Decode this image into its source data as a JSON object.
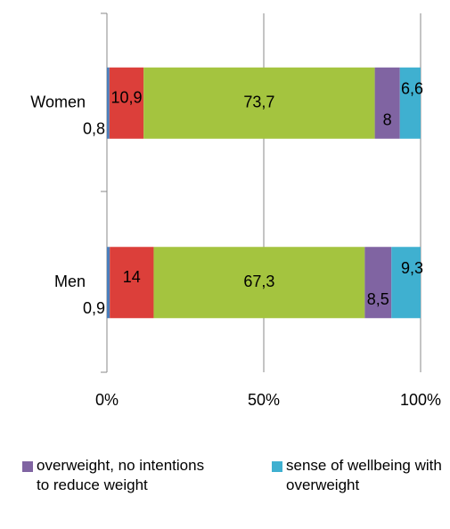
{
  "chart_data": {
    "type": "bar",
    "orientation": "horizontal",
    "stacked": true,
    "categories": [
      "Women",
      "Men"
    ],
    "series": [
      {
        "color": "#4a7ebb",
        "values": [
          0.8,
          0.9
        ],
        "value_labels": [
          "0,8",
          "0,9"
        ]
      },
      {
        "color": "#dc3f3a",
        "values": [
          10.9,
          14
        ],
        "value_labels": [
          "10,9",
          "14"
        ]
      },
      {
        "color": "#a4c43f",
        "values": [
          73.7,
          67.3
        ],
        "value_labels": [
          "73,7",
          "67,3"
        ]
      },
      {
        "name": "overweight, no intentions to reduce weight",
        "color": "#8064a2",
        "values": [
          8,
          8.5
        ],
        "value_labels": [
          "8",
          "8,5"
        ]
      },
      {
        "name": "sense of wellbeing with overweight",
        "color": "#3fb0d0",
        "values": [
          6.6,
          9.3
        ],
        "value_labels": [
          "6,6",
          "9,3"
        ]
      }
    ],
    "xlim": [
      0,
      100
    ],
    "xticks": [
      {
        "value": 0,
        "label": "0%"
      },
      {
        "value": 50,
        "label": "50%"
      },
      {
        "value": 100,
        "label": "100%"
      }
    ],
    "grid": true,
    "legend": "bottom"
  }
}
